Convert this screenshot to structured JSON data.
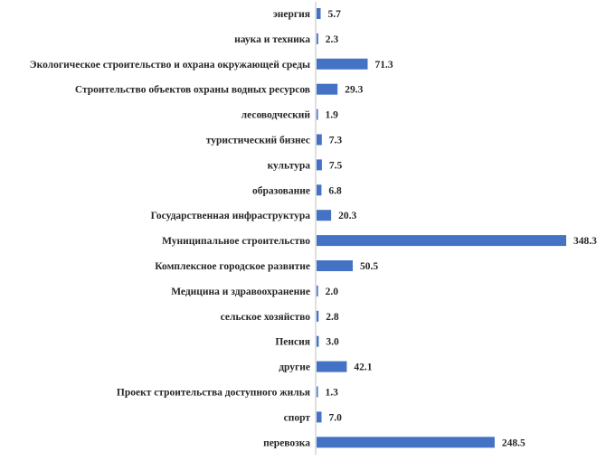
{
  "chart_data": {
    "type": "bar",
    "orientation": "horizontal",
    "title": "",
    "xlabel": "",
    "ylabel": "",
    "categories": [
      "энергия",
      "наука и техника",
      "Экологическое строительство и охрана окружающей среды",
      "Строительство объектов охраны водных ресурсов",
      "лесоводческий",
      "туристический бизнес",
      "культура",
      "образование",
      "Государственная инфраструктура",
      "Муниципальное строительство",
      "Комплексное городское развитие",
      "Медицина и здравоохранение",
      "сельское хозяйство",
      "Пенсия",
      "другие",
      "Проект строительства доступного жилья",
      "спорт",
      "перевозка"
    ],
    "values": [
      5.7,
      2.3,
      71.3,
      29.3,
      1.9,
      7.3,
      7.5,
      6.8,
      20.3,
      348.3,
      50.5,
      2.0,
      2.8,
      3.0,
      42.1,
      1.3,
      7.0,
      248.5
    ],
    "value_labels": [
      "5.7",
      "2.3",
      "71.3",
      "29.3",
      "1.9",
      "7.3",
      "7.5",
      "6.8",
      "20.3",
      "348.3",
      "50.5",
      "2.0",
      "2.8",
      "3.0",
      "42.1",
      "1.3",
      "7.0",
      "248.5"
    ],
    "xlim": [
      0,
      348.3
    ],
    "grid": false,
    "legend": "none",
    "colors": {
      "bar": "#4472C4",
      "axis": "#BFBFBF",
      "text": "#262626"
    }
  }
}
